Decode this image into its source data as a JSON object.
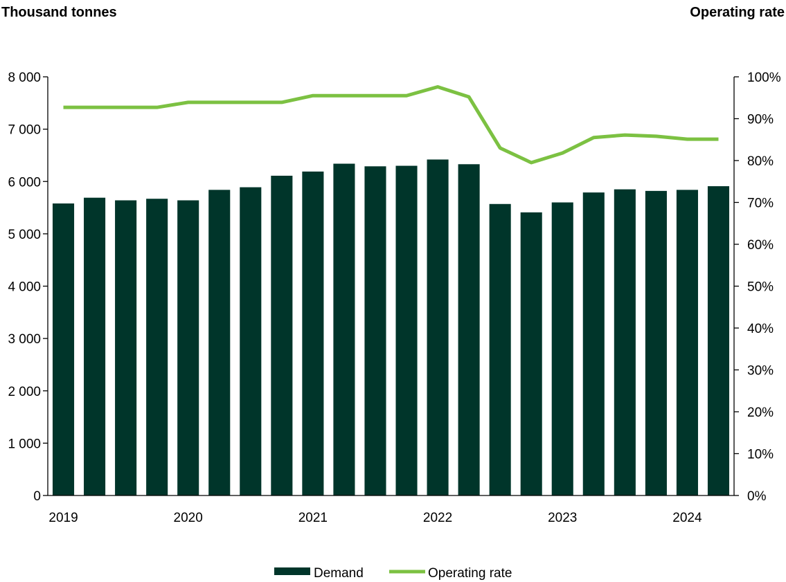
{
  "chart_data": {
    "type": "bar",
    "left_axis_label": "Thousand tonnes",
    "right_axis_label": "Operating rate",
    "x_tick_labels": [
      "2019",
      "2020",
      "2021",
      "2022",
      "2023",
      "2024"
    ],
    "x_tick_positions": [
      0,
      4,
      8,
      12,
      16,
      20
    ],
    "y_left": {
      "min": 0,
      "max": 8000,
      "step": 1000,
      "tick_labels": [
        "0",
        "1 000",
        "2 000",
        "3 000",
        "4 000",
        "5 000",
        "6 000",
        "7 000",
        "8 000"
      ]
    },
    "y_right": {
      "min": 0,
      "max": 100,
      "step": 10,
      "tick_labels": [
        "0%",
        "10%",
        "20%",
        "30%",
        "40%",
        "50%",
        "60%",
        "70%",
        "80%",
        "90%",
        "100%"
      ]
    },
    "series": [
      {
        "name": "Demand",
        "kind": "bar",
        "axis": "left",
        "color": "#00352a",
        "values": [
          5580,
          5690,
          5640,
          5670,
          5640,
          5840,
          5890,
          6110,
          6190,
          6340,
          6290,
          6300,
          6420,
          6330,
          5570,
          5410,
          5600,
          5790,
          5850,
          5820,
          5840,
          5910
        ]
      },
      {
        "name": "Operating rate",
        "kind": "line",
        "axis": "right",
        "color": "#7cc142",
        "values": [
          92.7,
          92.7,
          92.7,
          92.7,
          93.9,
          93.9,
          93.9,
          93.9,
          95.5,
          95.5,
          95.5,
          95.5,
          97.6,
          95.2,
          83.0,
          79.5,
          81.8,
          85.5,
          86.1,
          85.8,
          85.1,
          85.1
        ]
      }
    ],
    "legend": {
      "position": "bottom-center"
    },
    "grid": false
  }
}
